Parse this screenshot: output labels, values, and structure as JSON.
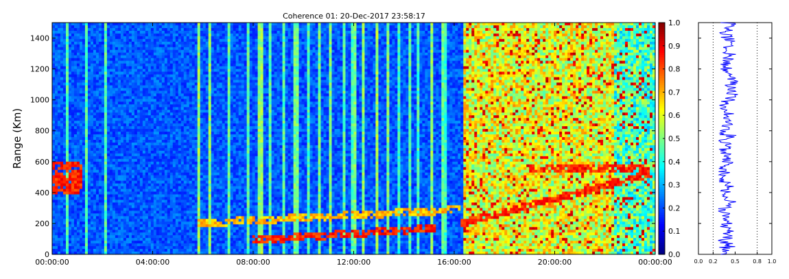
{
  "chart_data": [
    {
      "type": "heatmap",
      "title": "Coherence 01: 20-Dec-2017 23:58:17",
      "xlabel": "",
      "ylabel": "Range (Km)",
      "x_range": [
        "00:00:00",
        "00:00:00"
      ],
      "xlim_hours": [
        0,
        24
      ],
      "ylim": [
        0,
        1500
      ],
      "x_ticks": [
        "00:00:00",
        "04:00:00",
        "08:00:00",
        "12:00:00",
        "16:00:00",
        "20:00:00",
        "00:00:00"
      ],
      "x_tick_hours": [
        0,
        4,
        8,
        12,
        16,
        20,
        24
      ],
      "y_ticks": [
        0,
        200,
        400,
        600,
        800,
        1000,
        1200,
        1400
      ],
      "colormap": "jet",
      "value_range": [
        0,
        1
      ],
      "background_level": 0.15,
      "bright_columns_hours": [
        0.6,
        1.4,
        2.1,
        5.8,
        6.3,
        7.0,
        7.8,
        8.3,
        8.7,
        9.2,
        9.7,
        10.2,
        10.6,
        11.1,
        11.6,
        12.0,
        12.4,
        12.9,
        13.4,
        13.8,
        14.2,
        14.6,
        15.1,
        15.6
      ],
      "high_coherence_period_hours": [
        16.4,
        24
      ],
      "features": [
        {
          "hours": [
            0.0,
            1.2
          ],
          "range": [
            380,
            600
          ],
          "level": 0.9
        },
        {
          "hours": [
            8.0,
            15.3
          ],
          "range": [
            90,
            170
          ],
          "level": 0.9
        },
        {
          "hours": [
            5.8,
            16.3
          ],
          "range": [
            200,
            290
          ],
          "level": 0.75
        },
        {
          "hours": [
            16.3,
            23.8
          ],
          "range": [
            200,
            520
          ],
          "level": 0.9
        },
        {
          "hours": [
            19.0,
            23.8
          ],
          "range": [
            480,
            640
          ],
          "level": 0.9
        }
      ]
    },
    {
      "type": "line",
      "title": "",
      "xlabel": "",
      "ylabel": "",
      "xlim": [
        0.0,
        1.0
      ],
      "ylim": [
        0,
        1500
      ],
      "x_ticks": [
        0.0,
        0.2,
        0.5,
        0.8,
        1.0
      ],
      "x_tick_labels": [
        "0.0",
        "0.2",
        "0.5",
        "0.8",
        "1.0"
      ],
      "reference_lines_x": [
        0.2,
        0.8
      ],
      "series": [
        {
          "color": "#0000ff",
          "profile_range_step": 25,
          "x": [
            0.38,
            0.36,
            0.42,
            0.33,
            0.4,
            0.37,
            0.45,
            0.35,
            0.39,
            0.34,
            0.36,
            0.3,
            0.4,
            0.44,
            0.38,
            0.35,
            0.37,
            0.42,
            0.36,
            0.33,
            0.3,
            0.35,
            0.34,
            0.4,
            0.38,
            0.42,
            0.37,
            0.36,
            0.44,
            0.35,
            0.45,
            0.34,
            0.36,
            0.4,
            0.37,
            0.42,
            0.41,
            0.38,
            0.35,
            0.37,
            0.43,
            0.46,
            0.48,
            0.44,
            0.48,
            0.43,
            0.44,
            0.4,
            0.38,
            0.36,
            0.41,
            0.43,
            0.39,
            0.37,
            0.4,
            0.42,
            0.38,
            0.36,
            0.4,
            0.43,
            0.38,
            0.44
          ]
        }
      ]
    }
  ],
  "colorbar": {
    "ticks": [
      0.0,
      0.1,
      0.2,
      0.3,
      0.4,
      0.5,
      0.6,
      0.7,
      0.8,
      0.9,
      1.0
    ],
    "tick_labels": [
      "0.0",
      "0.1",
      "0.2",
      "0.3",
      "0.4",
      "0.5",
      "0.6",
      "0.7",
      "0.8",
      "0.9",
      "1.0"
    ]
  }
}
